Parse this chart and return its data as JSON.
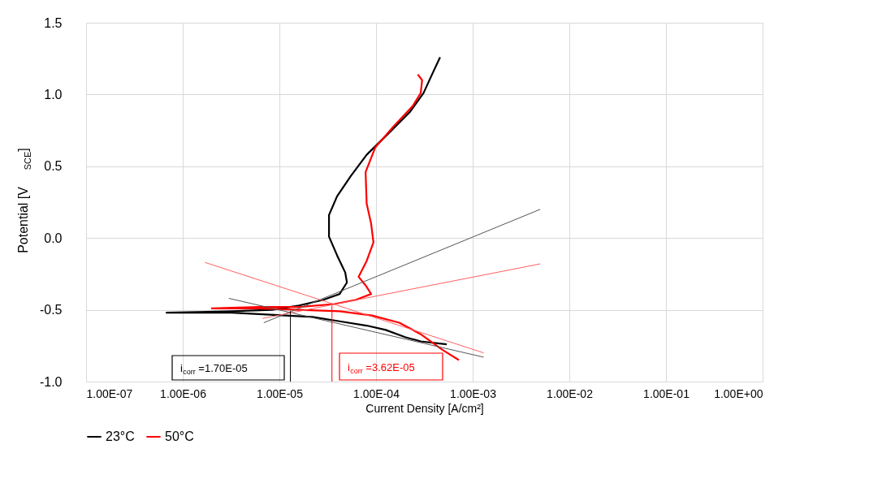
{
  "chart_data": {
    "type": "line",
    "xlabel": "Current Density [A/cm²]",
    "ylabel": "Potential  [V$_{SCE}$]",
    "log": "x",
    "grid": true,
    "legend": "bottom",
    "line_style": "solid",
    "marker": "none",
    "xlim": [
      1e-07,
      1
    ],
    "ylim": [
      -1.0,
      1.5
    ],
    "xticks": [
      {
        "value": 1e-07,
        "label": "1.00E-07"
      },
      {
        "value": 1e-06,
        "label": "1.00E-06"
      },
      {
        "value": 1e-05,
        "label": "1.00E-05"
      },
      {
        "value": 0.0001,
        "label": "1.00E-04"
      },
      {
        "value": 0.001,
        "label": "1.00E-03"
      },
      {
        "value": 0.01,
        "label": "1.00E-02"
      },
      {
        "value": 0.1,
        "label": "1.00E-01"
      },
      {
        "value": 1,
        "label": "1.00E+00"
      }
    ],
    "yticks": [
      {
        "value": -1.0,
        "label": "-1.0"
      },
      {
        "value": -0.5,
        "label": "-0.5"
      },
      {
        "value": 0,
        "label": "0.0"
      },
      {
        "value": 0.5,
        "label": "0.5"
      },
      {
        "value": 1.0,
        "label": "1.0"
      },
      {
        "value": 1.5,
        "label": "1.5"
      }
    ],
    "series": [
      {
        "name": "23°C",
        "color": "#000000",
        "x": [
          0.00054,
          0.00029,
          0.0002,
          0.000126,
          8e-05,
          4.2e-05,
          2.2e-05,
          1.16e-05,
          6.1e-06,
          3.2e-06,
          1.67e-06,
          6.8e-07,
          3.2e-06,
          8.4e-06,
          1.6e-05,
          2.86e-05,
          4.2e-05,
          5e-05,
          4.8e-05,
          3.95e-05,
          3.26e-05,
          3.26e-05,
          3.95e-05,
          5.46e-05,
          8e-05,
          0.000135,
          0.000225,
          0.00031,
          0.00038,
          0.00046
        ],
        "values": [
          -0.74,
          -0.72,
          -0.69,
          -0.64,
          -0.61,
          -0.58,
          -0.55,
          -0.54,
          -0.53,
          -0.52,
          -0.52,
          -0.52,
          -0.51,
          -0.5,
          -0.47,
          -0.43,
          -0.39,
          -0.31,
          -0.24,
          -0.12,
          0.01,
          0.16,
          0.29,
          0.43,
          0.58,
          0.73,
          0.88,
          1.01,
          1.14,
          1.26
        ]
      },
      {
        "name": "50°C",
        "color": "#ff0000",
        "x": [
          0.00072,
          0.00049,
          0.00029,
          0.000174,
          9.1e-05,
          4.2e-05,
          1.6e-05,
          6.1e-06,
          2e-06,
          6.1e-06,
          1.6e-05,
          3.7e-05,
          6.2e-05,
          8.9e-05,
          8e-05,
          6.6e-05,
          8e-05,
          9.4e-05,
          8.9e-05,
          8e-05,
          7.8e-05,
          9.8e-05,
          0.000153,
          0.00024,
          0.00029,
          0.0003,
          0.00027
        ],
        "values": [
          -0.85,
          -0.78,
          -0.67,
          -0.59,
          -0.54,
          -0.51,
          -0.5,
          -0.49,
          -0.49,
          -0.48,
          -0.48,
          -0.46,
          -0.43,
          -0.39,
          -0.34,
          -0.27,
          -0.16,
          -0.03,
          0.1,
          0.24,
          0.46,
          0.63,
          0.78,
          0.92,
          1.01,
          1.1,
          1.14
        ]
      },
      {
        "color": "#555555",
        "x": [
          6.9e-06,
          0.005
        ],
        "values": [
          -0.59,
          0.2
        ]
      },
      {
        "color": "#555555",
        "x": [
          3e-06,
          0.0013
        ],
        "values": [
          -0.42,
          -0.83
        ]
      },
      {
        "color": "#ff6060",
        "x": [
          6.7e-06,
          0.005
        ],
        "values": [
          -0.56,
          -0.18
        ]
      },
      {
        "color": "#ff6060",
        "x": [
          1.7e-06,
          0.0013
        ],
        "values": [
          -0.17,
          -0.8
        ]
      },
      {
        "color": "#000000",
        "x": [
          1.3e-05,
          1.3e-05
        ],
        "values": [
          -0.51,
          -1.0
        ]
      },
      {
        "color": "#ff0000",
        "x": [
          3.5e-05,
          3.5e-05
        ],
        "values": [
          -0.47,
          -1.0
        ]
      }
    ],
    "annotations": [
      "i$_{corr}$=1.70E-05",
      "i$_{corr}$=3.62E-05"
    ]
  }
}
